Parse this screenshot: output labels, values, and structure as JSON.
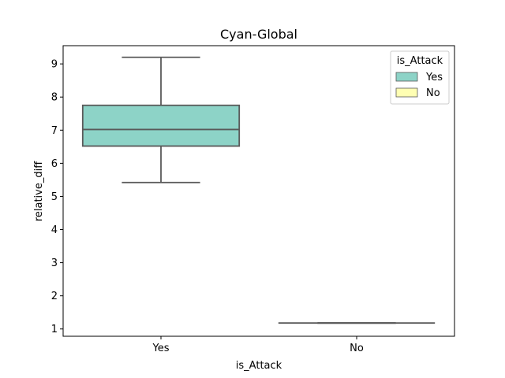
{
  "chart_data": {
    "type": "box",
    "title": "Cyan-Global",
    "xlabel": "is_Attack",
    "ylabel": "relative_diff",
    "categories": [
      "Yes",
      "No"
    ],
    "ylim": [
      0.78,
      9.55
    ],
    "yticks": [
      1,
      2,
      3,
      4,
      5,
      6,
      7,
      8,
      9
    ],
    "grid": false,
    "legend": {
      "title": "is_Attack",
      "placement": "top-right",
      "entries": [
        {
          "label": "Yes",
          "color": "#8dd3c7"
        },
        {
          "label": "No",
          "color": "#ffffb3"
        }
      ]
    },
    "boxes": [
      {
        "category": "Yes",
        "whisker_low": 5.42,
        "q1": 6.52,
        "median": 7.02,
        "q3": 7.75,
        "whisker_high": 9.2,
        "color": "#8dd3c7"
      },
      {
        "category": "No",
        "whisker_low": 1.18,
        "q1": 1.18,
        "median": 1.18,
        "q3": 1.18,
        "whisker_high": 1.18,
        "color": "#ffffb3"
      }
    ],
    "line_color": "#595959"
  }
}
